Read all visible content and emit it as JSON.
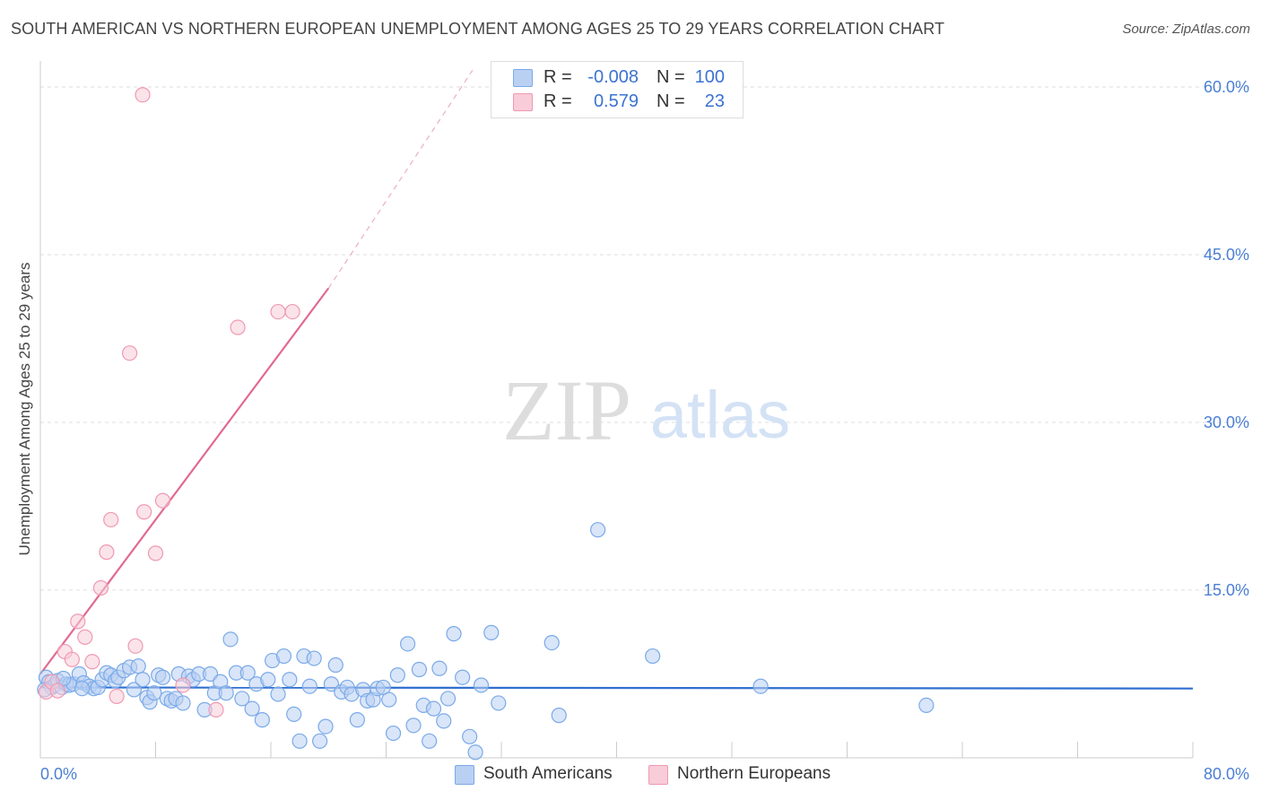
{
  "chart_data": {
    "type": "scatter",
    "title": "SOUTH AMERICAN VS NORTHERN EUROPEAN UNEMPLOYMENT AMONG AGES 25 TO 29 YEARS CORRELATION CHART",
    "source": "Source: ZipAtlas.com",
    "ylabel": "Unemployment Among Ages 25 to 29 years",
    "xlabel": "",
    "xlim": [
      0,
      80
    ],
    "ylim": [
      0,
      60
    ],
    "x_tick_labels": [
      "0.0%",
      "80.0%"
    ],
    "y_ticks": [
      15,
      30,
      45,
      60
    ],
    "y_tick_labels": [
      "15.0%",
      "30.0%",
      "45.0%",
      "60.0%"
    ],
    "watermark": "ZIPatlas",
    "legend": {
      "rows": [
        {
          "r_label": "R =",
          "r_value": "-0.008",
          "n_label": "N =",
          "n_value": "100"
        },
        {
          "r_label": "R =",
          "r_value": "0.579",
          "n_label": "N =",
          "n_value": "23"
        }
      ]
    },
    "series": [
      {
        "name": "South Americans",
        "color": "#7aaae8",
        "fill": "#b9d0f3",
        "trend": {
          "x0": 0,
          "y0": 6.3,
          "x1": 80,
          "y1": 6.2,
          "color": "#2f6fd0"
        },
        "points": [
          [
            0.4,
            7.2
          ],
          [
            0.6,
            6.8
          ],
          [
            0.8,
            6.3
          ],
          [
            1.0,
            6.5
          ],
          [
            1.2,
            6.9
          ],
          [
            1.5,
            6.3
          ],
          [
            1.8,
            6.6
          ],
          [
            2.0,
            6.5
          ],
          [
            2.3,
            6.6
          ],
          [
            2.7,
            7.5
          ],
          [
            3.0,
            6.7
          ],
          [
            3.4,
            6.4
          ],
          [
            3.7,
            6.2
          ],
          [
            4.0,
            6.3
          ],
          [
            4.3,
            7.0
          ],
          [
            4.6,
            7.6
          ],
          [
            4.9,
            7.4
          ],
          [
            5.2,
            6.9
          ],
          [
            5.4,
            7.2
          ],
          [
            5.8,
            7.8
          ],
          [
            6.2,
            8.1
          ],
          [
            6.5,
            6.1
          ],
          [
            6.8,
            8.2
          ],
          [
            7.1,
            7.0
          ],
          [
            7.4,
            5.4
          ],
          [
            7.6,
            5.0
          ],
          [
            7.9,
            5.8
          ],
          [
            8.2,
            7.4
          ],
          [
            8.5,
            7.2
          ],
          [
            8.8,
            5.3
          ],
          [
            9.1,
            5.1
          ],
          [
            9.4,
            5.3
          ],
          [
            9.6,
            7.5
          ],
          [
            9.9,
            4.9
          ],
          [
            10.3,
            7.3
          ],
          [
            10.6,
            7.0
          ],
          [
            11.0,
            7.5
          ],
          [
            11.4,
            4.3
          ],
          [
            11.8,
            7.5
          ],
          [
            12.1,
            5.8
          ],
          [
            12.5,
            6.8
          ],
          [
            12.9,
            5.8
          ],
          [
            13.2,
            10.6
          ],
          [
            13.6,
            7.6
          ],
          [
            14.0,
            5.3
          ],
          [
            14.4,
            7.6
          ],
          [
            14.7,
            4.4
          ],
          [
            15.0,
            6.6
          ],
          [
            15.4,
            3.4
          ],
          [
            15.8,
            7.0
          ],
          [
            16.1,
            8.7
          ],
          [
            16.5,
            5.7
          ],
          [
            16.9,
            9.1
          ],
          [
            17.3,
            7.0
          ],
          [
            17.6,
            3.9
          ],
          [
            18.0,
            1.5
          ],
          [
            18.3,
            9.1
          ],
          [
            18.7,
            6.4
          ],
          [
            19.0,
            8.9
          ],
          [
            19.4,
            1.5
          ],
          [
            19.8,
            2.8
          ],
          [
            20.2,
            6.6
          ],
          [
            20.5,
            8.3
          ],
          [
            20.9,
            5.9
          ],
          [
            21.3,
            6.3
          ],
          [
            21.6,
            5.7
          ],
          [
            22.0,
            3.4
          ],
          [
            22.4,
            6.1
          ],
          [
            22.7,
            5.1
          ],
          [
            23.1,
            5.2
          ],
          [
            23.4,
            6.2
          ],
          [
            23.8,
            6.3
          ],
          [
            24.2,
            5.2
          ],
          [
            24.5,
            2.2
          ],
          [
            24.8,
            7.4
          ],
          [
            25.5,
            10.2
          ],
          [
            25.9,
            2.9
          ],
          [
            26.3,
            7.9
          ],
          [
            26.6,
            4.7
          ],
          [
            27.0,
            1.5
          ],
          [
            27.3,
            4.4
          ],
          [
            27.7,
            8.0
          ],
          [
            28.0,
            3.3
          ],
          [
            28.3,
            5.3
          ],
          [
            28.7,
            11.1
          ],
          [
            29.3,
            7.2
          ],
          [
            29.8,
            1.9
          ],
          [
            30.2,
            0.5
          ],
          [
            30.6,
            6.5
          ],
          [
            31.3,
            11.2
          ],
          [
            31.8,
            4.9
          ],
          [
            36.0,
            3.8
          ],
          [
            35.5,
            10.3
          ],
          [
            38.7,
            20.4
          ],
          [
            42.5,
            9.1
          ],
          [
            50.0,
            6.4
          ],
          [
            61.5,
            4.7
          ],
          [
            0.3,
            6.1
          ],
          [
            1.6,
            7.1
          ],
          [
            2.9,
            6.2
          ]
        ]
      },
      {
        "name": "Northern Europeans",
        "color": "#ef99b2",
        "fill": "#f8ccd9",
        "trend": {
          "x0": 0,
          "y0": 7.5,
          "x1": 20,
          "y1": 42.0,
          "dash_x1": 30,
          "dash_y1": 61.5,
          "color": "#e06a91"
        },
        "points": [
          [
            0.4,
            5.9
          ],
          [
            0.8,
            6.8
          ],
          [
            1.2,
            6.0
          ],
          [
            1.7,
            9.5
          ],
          [
            2.2,
            8.8
          ],
          [
            2.6,
            12.2
          ],
          [
            3.1,
            10.8
          ],
          [
            3.6,
            8.6
          ],
          [
            4.2,
            15.2
          ],
          [
            4.6,
            18.4
          ],
          [
            4.9,
            21.3
          ],
          [
            5.3,
            5.5
          ],
          [
            6.2,
            36.2
          ],
          [
            6.6,
            10.0
          ],
          [
            7.1,
            59.3
          ],
          [
            7.2,
            22.0
          ],
          [
            8.0,
            18.3
          ],
          [
            8.5,
            23.0
          ],
          [
            9.9,
            6.5
          ],
          [
            12.2,
            4.3
          ],
          [
            13.7,
            38.5
          ],
          [
            16.5,
            39.9
          ],
          [
            17.5,
            39.9
          ]
        ]
      }
    ]
  }
}
